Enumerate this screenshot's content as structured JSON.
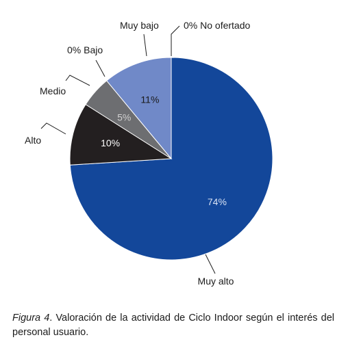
{
  "chart_data": {
    "type": "pie",
    "categories": [
      "Muy alto",
      "Alto",
      "Medio",
      "Bajo",
      "Muy bajo",
      "No ofertado"
    ],
    "values": [
      74,
      10,
      5,
      0,
      11,
      0
    ],
    "value_labels": [
      "74%",
      "10%",
      "5%",
      "0%",
      "11%",
      "0%"
    ],
    "colors": [
      "#13479a",
      "#231f20",
      "#6d6e71",
      "#9b9c9f",
      "#7089c8",
      "#bfbfbf"
    ],
    "pct_text_colors": [
      "#d9e2f3",
      "#ffffff",
      "#d0d0d0",
      "#1a1a1a",
      "#1a1a1a",
      "#1a1a1a"
    ],
    "start_angle_deg": 0,
    "direction": "clockwise",
    "legend": "none"
  },
  "caption": {
    "figure_label": "Figura 4",
    "text": ". Valoración de la actividad de Ciclo Indoor según el interés del personal usuario."
  }
}
